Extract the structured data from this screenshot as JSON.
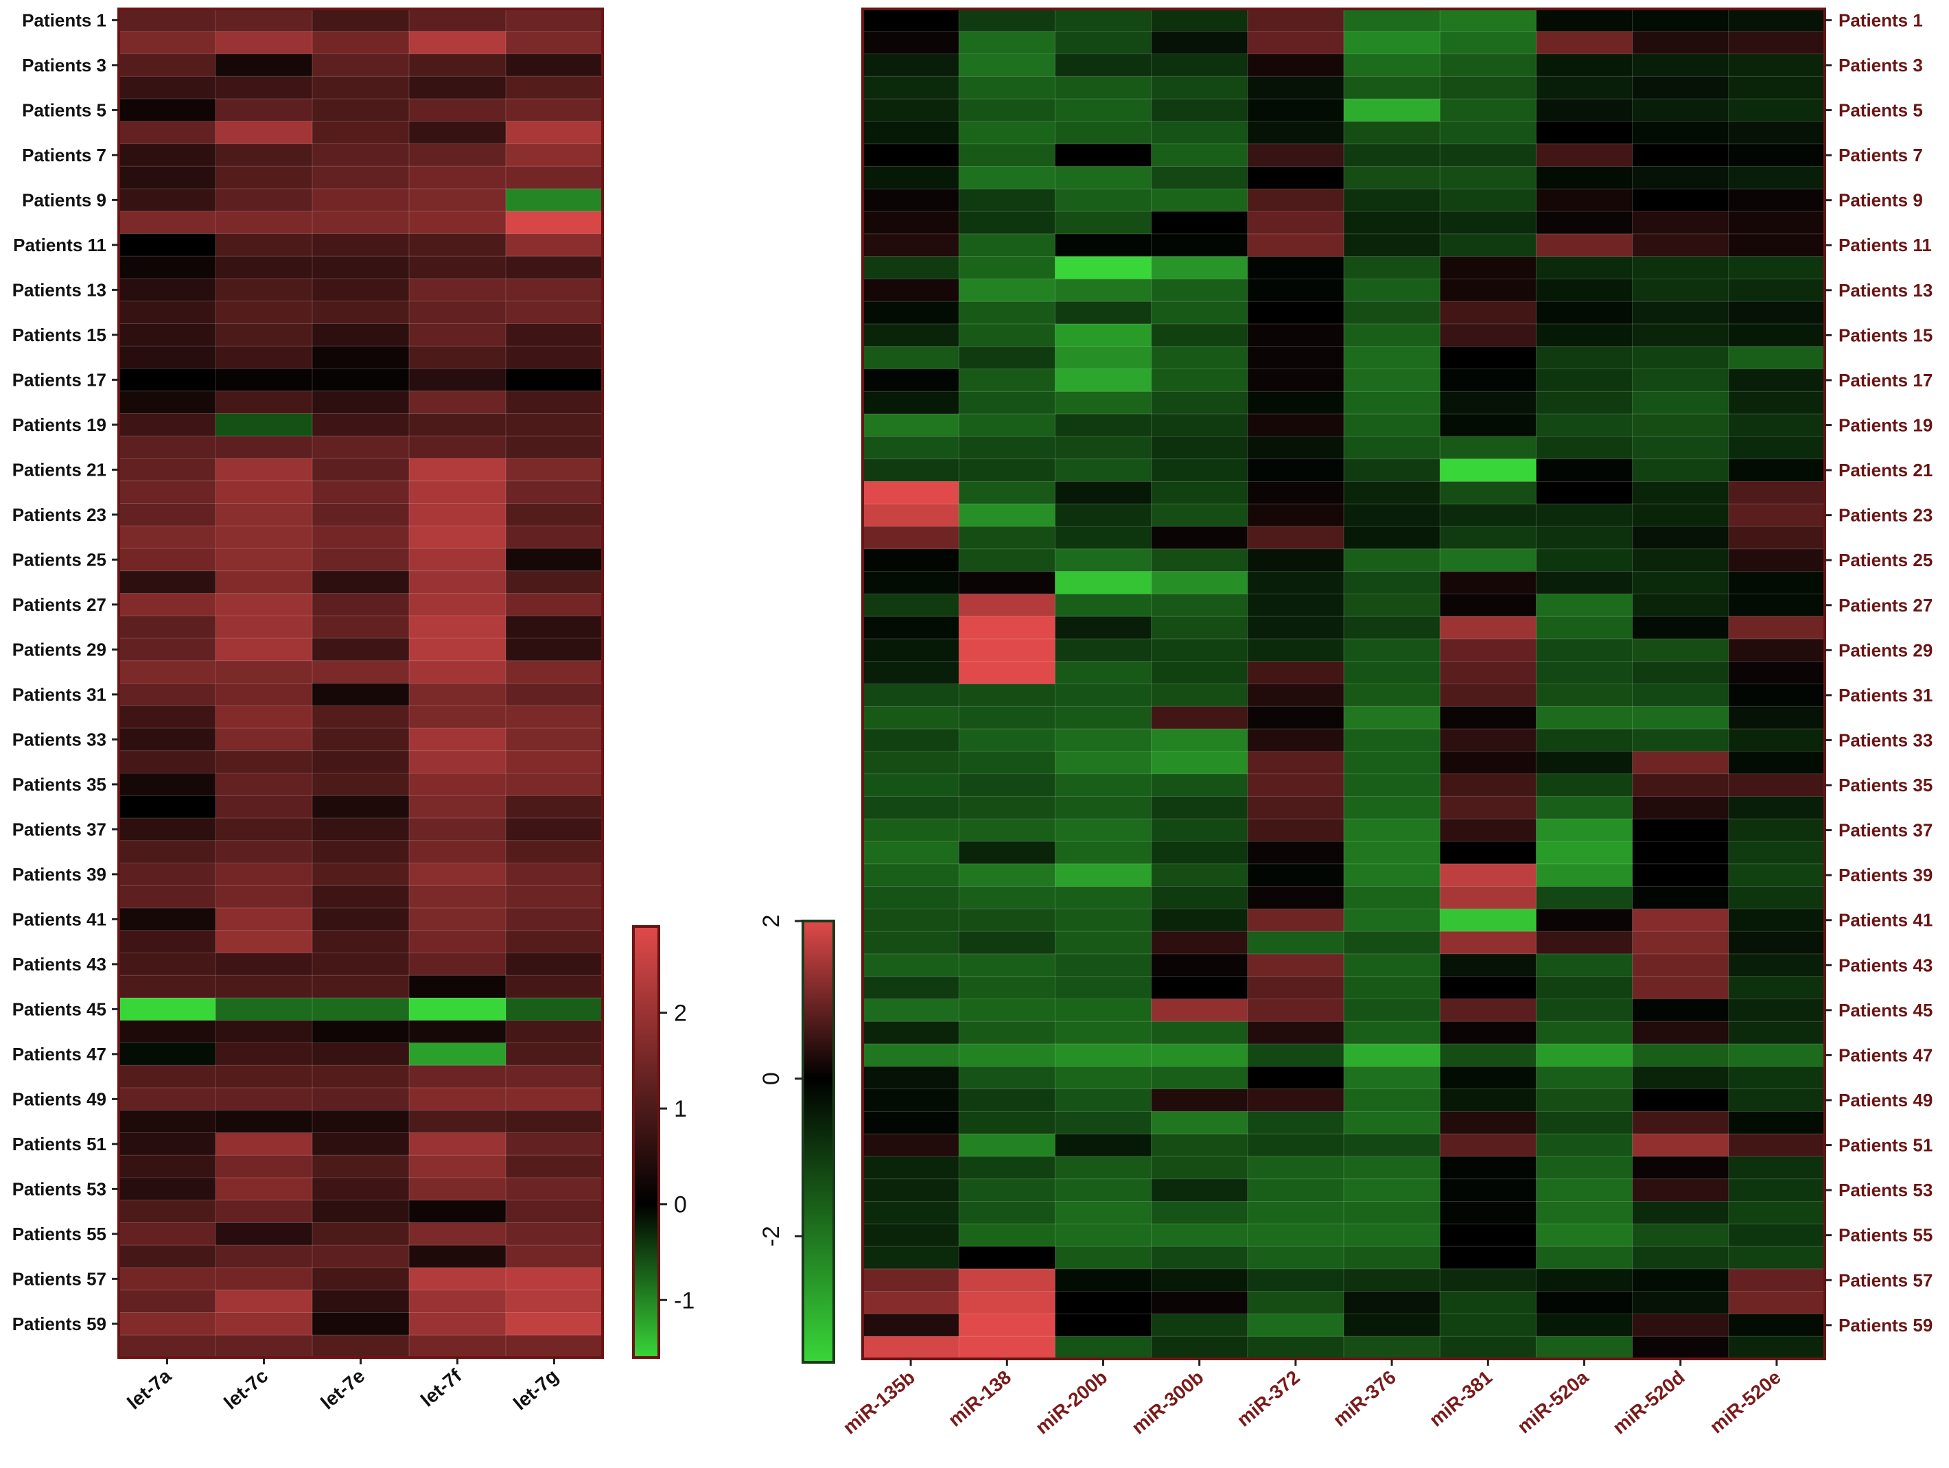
{
  "chart_data": [
    {
      "type": "heatmap",
      "title": "",
      "columns": [
        "let-7a",
        "let-7c",
        "let-7e",
        "let-7f",
        "let-7g"
      ],
      "row_labels": [
        "Patients 1",
        "Patients 3",
        "Patients 5",
        "Patients 7",
        "Patients 9",
        "Patients 11",
        "Patients 13",
        "Patients 15",
        "Patients 17",
        "Patients 19",
        "Patients 21",
        "Patients 23",
        "Patients 25",
        "Patients 27",
        "Patients 29",
        "Patients 31",
        "Patients 33",
        "Patients 35",
        "Patients 37",
        "Patients 39",
        "Patients 41",
        "Patients 43",
        "Patients 45",
        "Patients 47",
        "Patients 49",
        "Patients 51",
        "Patients 53",
        "Patients 55",
        "Patients 57",
        "Patients 59"
      ],
      "n_rows": 60,
      "values": [
        [
          1.2,
          1.3,
          0.9,
          1.2,
          1.4
        ],
        [
          1.6,
          2.0,
          1.5,
          2.3,
          1.6
        ],
        [
          1.1,
          0.3,
          1.2,
          1.0,
          0.6
        ],
        [
          0.7,
          0.8,
          1.0,
          0.7,
          1.1
        ],
        [
          0.2,
          1.2,
          1.0,
          1.3,
          1.4
        ],
        [
          1.3,
          2.1,
          1.1,
          0.7,
          2.2
        ],
        [
          0.6,
          1.0,
          1.2,
          1.3,
          1.8
        ],
        [
          0.5,
          1.1,
          1.3,
          1.5,
          1.5
        ],
        [
          0.7,
          1.2,
          1.5,
          1.6,
          -1.0
        ],
        [
          1.6,
          1.6,
          1.6,
          1.7,
          2.8
        ],
        [
          0.0,
          1.0,
          0.9,
          1.0,
          1.8
        ],
        [
          0.2,
          0.7,
          0.7,
          0.9,
          0.8
        ],
        [
          0.5,
          1.0,
          0.8,
          1.4,
          1.4
        ],
        [
          0.7,
          1.1,
          1.0,
          1.3,
          1.4
        ],
        [
          0.6,
          1.0,
          0.6,
          1.3,
          0.8
        ],
        [
          0.5,
          0.8,
          0.2,
          1.0,
          0.8
        ],
        [
          0.0,
          0.1,
          0.1,
          0.5,
          0.0
        ],
        [
          0.3,
          0.9,
          0.6,
          1.4,
          0.9
        ],
        [
          0.8,
          -0.6,
          0.8,
          1.0,
          1.0
        ],
        [
          1.2,
          1.2,
          1.3,
          1.2,
          1.0
        ],
        [
          1.3,
          2.0,
          1.2,
          2.3,
          1.6
        ],
        [
          1.4,
          1.9,
          1.4,
          2.2,
          1.4
        ],
        [
          1.3,
          1.8,
          1.3,
          2.2,
          1.1
        ],
        [
          1.6,
          1.8,
          1.5,
          2.3,
          1.3
        ],
        [
          1.5,
          1.8,
          1.4,
          2.1,
          0.3
        ],
        [
          0.6,
          1.7,
          0.6,
          2.0,
          1.0
        ],
        [
          1.7,
          2.0,
          1.2,
          2.1,
          1.5
        ],
        [
          1.2,
          2.0,
          1.3,
          2.3,
          0.6
        ],
        [
          1.3,
          2.1,
          0.8,
          2.3,
          0.6
        ],
        [
          1.6,
          1.6,
          1.6,
          2.1,
          1.6
        ],
        [
          1.3,
          1.5,
          0.3,
          1.6,
          1.3
        ],
        [
          0.8,
          1.7,
          1.1,
          1.6,
          1.6
        ],
        [
          0.6,
          1.6,
          1.0,
          2.1,
          1.6
        ],
        [
          0.9,
          1.1,
          0.9,
          2.0,
          1.7
        ],
        [
          0.3,
          1.3,
          1.0,
          1.7,
          1.6
        ],
        [
          0.0,
          1.2,
          0.4,
          1.6,
          1.0
        ],
        [
          0.6,
          1.0,
          0.7,
          1.4,
          0.8
        ],
        [
          1.0,
          1.2,
          0.9,
          1.5,
          1.1
        ],
        [
          1.2,
          1.5,
          1.1,
          1.8,
          1.4
        ],
        [
          1.2,
          1.5,
          0.8,
          1.6,
          1.4
        ],
        [
          0.3,
          1.8,
          0.7,
          1.6,
          1.3
        ],
        [
          0.8,
          1.9,
          0.9,
          1.5,
          1.1
        ],
        [
          0.9,
          0.8,
          0.9,
          1.3,
          0.7
        ],
        [
          1.0,
          1.0,
          1.0,
          0.2,
          0.9
        ],
        [
          -1.6,
          -0.8,
          -0.8,
          -1.6,
          -0.7
        ],
        [
          0.4,
          0.6,
          0.2,
          0.3,
          0.9
        ],
        [
          -0.1,
          0.8,
          0.7,
          -1.2,
          1.0
        ],
        [
          1.1,
          1.1,
          1.1,
          1.4,
          1.4
        ],
        [
          1.3,
          1.3,
          1.2,
          1.7,
          1.7
        ],
        [
          0.4,
          0.3,
          0.4,
          1.0,
          0.9
        ],
        [
          0.5,
          1.9,
          0.6,
          2.0,
          1.3
        ],
        [
          0.7,
          1.5,
          1.0,
          1.8,
          1.1
        ],
        [
          0.5,
          1.7,
          0.8,
          1.6,
          1.4
        ],
        [
          1.0,
          1.3,
          0.6,
          0.2,
          1.2
        ],
        [
          1.3,
          0.5,
          1.0,
          1.6,
          1.4
        ],
        [
          0.9,
          1.2,
          1.2,
          0.4,
          1.5
        ],
        [
          1.5,
          1.5,
          0.9,
          2.3,
          2.4
        ],
        [
          1.3,
          2.1,
          0.6,
          2.0,
          2.3
        ],
        [
          1.7,
          1.9,
          0.3,
          2.0,
          2.5
        ],
        [
          1.3,
          1.3,
          1.1,
          1.5,
          1.5
        ]
      ],
      "colorbar": {
        "min": -1.6,
        "max": 2.9,
        "ticks": [
          "2",
          "1",
          "0",
          "-1"
        ],
        "tick_values": [
          2,
          1,
          0,
          -1
        ],
        "orientation": "vertical"
      },
      "colors": {
        "low": "#39d639",
        "mid": "#000000",
        "high": "#e04a4a"
      }
    },
    {
      "type": "heatmap",
      "title": "",
      "columns": [
        "miR-135b",
        "miR-138",
        "miR-200b",
        "miR-300b",
        "miR-372",
        "miR-376",
        "miR-381",
        "miR-520a",
        "miR-520d",
        "miR-520e"
      ],
      "row_labels": [
        "Patients 1",
        "Patients 3",
        "Patients 5",
        "Patients 7",
        "Patients 9",
        "Patients 11",
        "Patients 13",
        "Patients 15",
        "Patients 17",
        "Patients 19",
        "Patients 21",
        "Patients 23",
        "Patients 25",
        "Patients 27",
        "Patients 29",
        "Patients 31",
        "Patients 33",
        "Patients 35",
        "Patients 37",
        "Patients 39",
        "Patients 41",
        "Patients 43",
        "Patients 45",
        "Patients 47",
        "Patients 49",
        "Patients 51",
        "Patients 53",
        "Patients 55",
        "Patients 57",
        "Patients 59"
      ],
      "n_rows": 60,
      "values": [
        [
          0.0,
          -1.0,
          -1.2,
          -0.8,
          0.8,
          -1.8,
          -2.0,
          -0.2,
          -0.2,
          -0.3
        ],
        [
          0.1,
          -1.8,
          -1.2,
          -0.3,
          0.9,
          -2.3,
          -1.8,
          1.0,
          0.3,
          0.4
        ],
        [
          -0.5,
          -1.9,
          -0.8,
          -0.8,
          0.2,
          -1.8,
          -1.5,
          -0.4,
          -0.5,
          -0.6
        ],
        [
          -0.7,
          -1.6,
          -1.5,
          -1.2,
          -0.3,
          -1.5,
          -1.3,
          -0.5,
          -0.3,
          -0.6
        ],
        [
          -0.6,
          -1.4,
          -1.6,
          -1.0,
          -0.2,
          -2.9,
          -1.5,
          -0.3,
          -0.5,
          -0.7
        ],
        [
          -0.4,
          -1.7,
          -1.5,
          -1.4,
          -0.3,
          -1.3,
          -1.4,
          0.0,
          -0.2,
          -0.3
        ],
        [
          0.0,
          -1.5,
          0.0,
          -1.6,
          0.5,
          -1.0,
          -1.0,
          0.6,
          0.0,
          -0.1
        ],
        [
          -0.4,
          -1.9,
          -1.8,
          -1.2,
          0.0,
          -1.3,
          -1.3,
          -0.2,
          -0.3,
          -0.5
        ],
        [
          0.1,
          -1.0,
          -1.6,
          -1.7,
          0.7,
          -0.8,
          -1.1,
          0.2,
          0.0,
          0.1
        ],
        [
          0.2,
          -0.9,
          -1.3,
          0.0,
          0.9,
          -0.6,
          -0.7,
          0.1,
          0.3,
          0.2
        ],
        [
          0.3,
          -1.6,
          -0.1,
          -0.1,
          1.0,
          -0.6,
          -1.0,
          1.0,
          0.4,
          0.2
        ],
        [
          -1.0,
          -1.7,
          -3.6,
          -2.5,
          -0.1,
          -1.3,
          0.2,
          -0.7,
          -0.8,
          -0.9
        ],
        [
          0.2,
          -2.2,
          -2.0,
          -1.6,
          -0.1,
          -1.6,
          0.2,
          -0.4,
          -0.8,
          -0.7
        ],
        [
          -0.2,
          -1.5,
          -1.0,
          -1.5,
          0.0,
          -1.3,
          0.6,
          -0.2,
          -0.5,
          -0.3
        ],
        [
          -0.6,
          -1.5,
          -2.6,
          -1.1,
          0.1,
          -1.6,
          0.5,
          -0.4,
          -0.6,
          -0.4
        ],
        [
          -1.5,
          -1.0,
          -2.4,
          -1.5,
          0.1,
          -1.8,
          0.0,
          -1.0,
          -1.1,
          -1.6
        ],
        [
          -0.1,
          -1.5,
          -2.8,
          -1.5,
          0.1,
          -1.8,
          -0.1,
          -0.9,
          -1.2,
          -0.5
        ],
        [
          -0.4,
          -1.4,
          -1.7,
          -1.2,
          -0.2,
          -1.7,
          -0.3,
          -1.0,
          -1.4,
          -0.6
        ],
        [
          -2.0,
          -1.6,
          -1.0,
          -1.0,
          0.2,
          -1.6,
          -0.2,
          -1.2,
          -1.3,
          -0.8
        ],
        [
          -1.4,
          -1.2,
          -1.2,
          -0.8,
          -0.3,
          -1.4,
          -1.5,
          -1.0,
          -1.2,
          -0.7
        ],
        [
          -1.0,
          -1.1,
          -1.4,
          -0.9,
          -0.1,
          -1.0,
          -3.6,
          -0.1,
          -1.1,
          -0.2
        ],
        [
          2.0,
          -1.5,
          -0.4,
          -1.1,
          0.1,
          -0.6,
          -1.3,
          0.0,
          -0.6,
          0.7
        ],
        [
          1.8,
          -2.4,
          -0.8,
          -1.3,
          0.2,
          -0.5,
          -0.7,
          -0.7,
          -0.6,
          0.8
        ],
        [
          1.0,
          -1.3,
          -0.9,
          0.1,
          0.7,
          -0.4,
          -1.0,
          -0.8,
          -0.3,
          0.6
        ],
        [
          -0.1,
          -1.3,
          -1.8,
          -1.3,
          -0.3,
          -1.6,
          -1.9,
          -0.9,
          -0.6,
          0.3
        ],
        [
          -0.2,
          0.1,
          -3.3,
          -2.4,
          -0.5,
          -1.2,
          0.2,
          -0.5,
          -0.7,
          -0.2
        ],
        [
          -1.0,
          1.6,
          -1.6,
          -1.5,
          -0.5,
          -1.3,
          0.1,
          -1.8,
          -0.6,
          -0.2
        ],
        [
          -0.2,
          2.0,
          -0.5,
          -1.3,
          -0.5,
          -1.0,
          1.4,
          -1.6,
          -0.2,
          1.0
        ],
        [
          -0.4,
          2.2,
          -1.0,
          -1.1,
          -0.7,
          -1.4,
          0.9,
          -1.2,
          -1.3,
          0.3
        ],
        [
          -0.5,
          2.2,
          -1.5,
          -1.1,
          0.6,
          -1.4,
          0.8,
          -1.2,
          -1.0,
          0.1
        ],
        [
          -1.2,
          -1.3,
          -1.4,
          -1.3,
          0.3,
          -1.5,
          0.7,
          -1.3,
          -1.2,
          -0.1
        ],
        [
          -1.5,
          -1.4,
          -1.5,
          0.6,
          0.1,
          -2.0,
          0.1,
          -1.8,
          -1.8,
          -0.3
        ],
        [
          -1.1,
          -1.6,
          -1.8,
          -2.2,
          0.3,
          -1.6,
          0.4,
          -1.1,
          -1.2,
          -0.6
        ],
        [
          -1.3,
          -1.4,
          -2.0,
          -2.4,
          0.8,
          -1.6,
          0.2,
          -0.4,
          1.0,
          -0.2
        ],
        [
          -1.4,
          -1.2,
          -1.6,
          -1.4,
          0.8,
          -1.6,
          0.6,
          -1.1,
          0.6,
          0.6
        ],
        [
          -1.2,
          -1.3,
          -1.5,
          -1.0,
          0.7,
          -1.7,
          0.7,
          -1.6,
          0.3,
          -0.5
        ],
        [
          -1.6,
          -1.6,
          -1.8,
          -1.2,
          0.6,
          -2.0,
          0.4,
          -2.4,
          0.0,
          -0.8
        ],
        [
          -1.8,
          -0.6,
          -1.7,
          -0.9,
          0.1,
          -2.0,
          0.0,
          -2.6,
          0.0,
          -1.0
        ],
        [
          -1.6,
          -2.0,
          -2.7,
          -1.3,
          -0.1,
          -2.0,
          1.7,
          -2.4,
          0.0,
          -1.1
        ],
        [
          -1.4,
          -1.6,
          -1.6,
          -1.0,
          0.1,
          -1.7,
          1.5,
          -1.2,
          -0.1,
          -0.9
        ],
        [
          -1.3,
          -1.3,
          -1.5,
          -0.6,
          1.0,
          -1.8,
          -3.3,
          0.1,
          1.2,
          -0.4
        ],
        [
          -1.3,
          -1.0,
          -1.5,
          0.4,
          -1.6,
          -1.3,
          1.3,
          0.5,
          1.1,
          -0.3
        ],
        [
          -1.6,
          -1.6,
          -1.4,
          0.1,
          1.0,
          -1.6,
          -0.3,
          -1.4,
          1.0,
          -0.5
        ],
        [
          -1.0,
          -1.5,
          -1.4,
          0.0,
          0.8,
          -1.5,
          0.0,
          -1.1,
          1.0,
          -0.8
        ],
        [
          -1.8,
          -1.7,
          -1.7,
          1.3,
          0.9,
          -1.4,
          0.8,
          -1.2,
          -0.1,
          -0.6
        ],
        [
          -0.6,
          -1.5,
          -1.7,
          -1.5,
          0.3,
          -1.6,
          0.1,
          -1.5,
          0.3,
          -0.7
        ],
        [
          -2.0,
          -2.2,
          -2.4,
          -2.4,
          -1.2,
          -2.9,
          -1.3,
          -2.6,
          -1.6,
          -1.8
        ],
        [
          -0.3,
          -1.4,
          -1.7,
          -1.6,
          0.0,
          -1.9,
          -0.2,
          -1.6,
          -0.6,
          -0.9
        ],
        [
          -0.2,
          -1.0,
          -1.4,
          0.3,
          0.4,
          -1.7,
          -0.4,
          -1.3,
          0.0,
          -0.8
        ],
        [
          -0.1,
          -1.1,
          -1.2,
          -2.0,
          -1.2,
          -1.8,
          0.3,
          -1.1,
          0.6,
          -0.2
        ],
        [
          0.3,
          -2.2,
          -0.4,
          -1.3,
          -1.1,
          -1.2,
          0.8,
          -1.4,
          1.3,
          0.6
        ],
        [
          -0.6,
          -1.1,
          -1.5,
          -1.3,
          -1.6,
          -1.7,
          -0.1,
          -1.6,
          0.1,
          -0.8
        ],
        [
          -0.6,
          -1.4,
          -1.6,
          -0.7,
          -1.6,
          -1.8,
          -0.1,
          -1.8,
          0.4,
          -0.9
        ],
        [
          -0.7,
          -1.4,
          -1.8,
          -1.4,
          -1.7,
          -1.7,
          -0.1,
          -1.8,
          -0.7,
          -1.1
        ],
        [
          -0.6,
          -1.7,
          -1.8,
          -1.8,
          -1.8,
          -1.8,
          0.0,
          -2.0,
          -1.3,
          -0.9
        ],
        [
          -0.7,
          0.0,
          -1.5,
          -1.2,
          -1.6,
          -1.5,
          0.0,
          -1.6,
          -1.0,
          -1.1
        ],
        [
          1.0,
          1.8,
          -0.2,
          -0.4,
          -0.9,
          -0.8,
          -0.7,
          -0.4,
          -0.2,
          0.9
        ],
        [
          1.2,
          1.9,
          0.0,
          0.1,
          -1.3,
          -0.3,
          -1.1,
          -0.1,
          -0.3,
          1.0
        ],
        [
          0.3,
          2.1,
          0.0,
          -1.0,
          -1.8,
          -0.4,
          -1.1,
          -0.4,
          0.4,
          -0.2
        ],
        [
          1.9,
          2.1,
          -1.4,
          -0.8,
          -1.1,
          -1.3,
          -1.0,
          -1.6,
          0.1,
          -0.6
        ]
      ],
      "colorbar": {
        "min": -3.6,
        "max": 2.0,
        "ticks": [
          "2",
          "0",
          "-2"
        ],
        "tick_values": [
          2,
          0,
          -2
        ],
        "orientation": "vertical"
      },
      "colors": {
        "low": "#39d639",
        "mid": "#000000",
        "high": "#e04a4a"
      }
    }
  ]
}
